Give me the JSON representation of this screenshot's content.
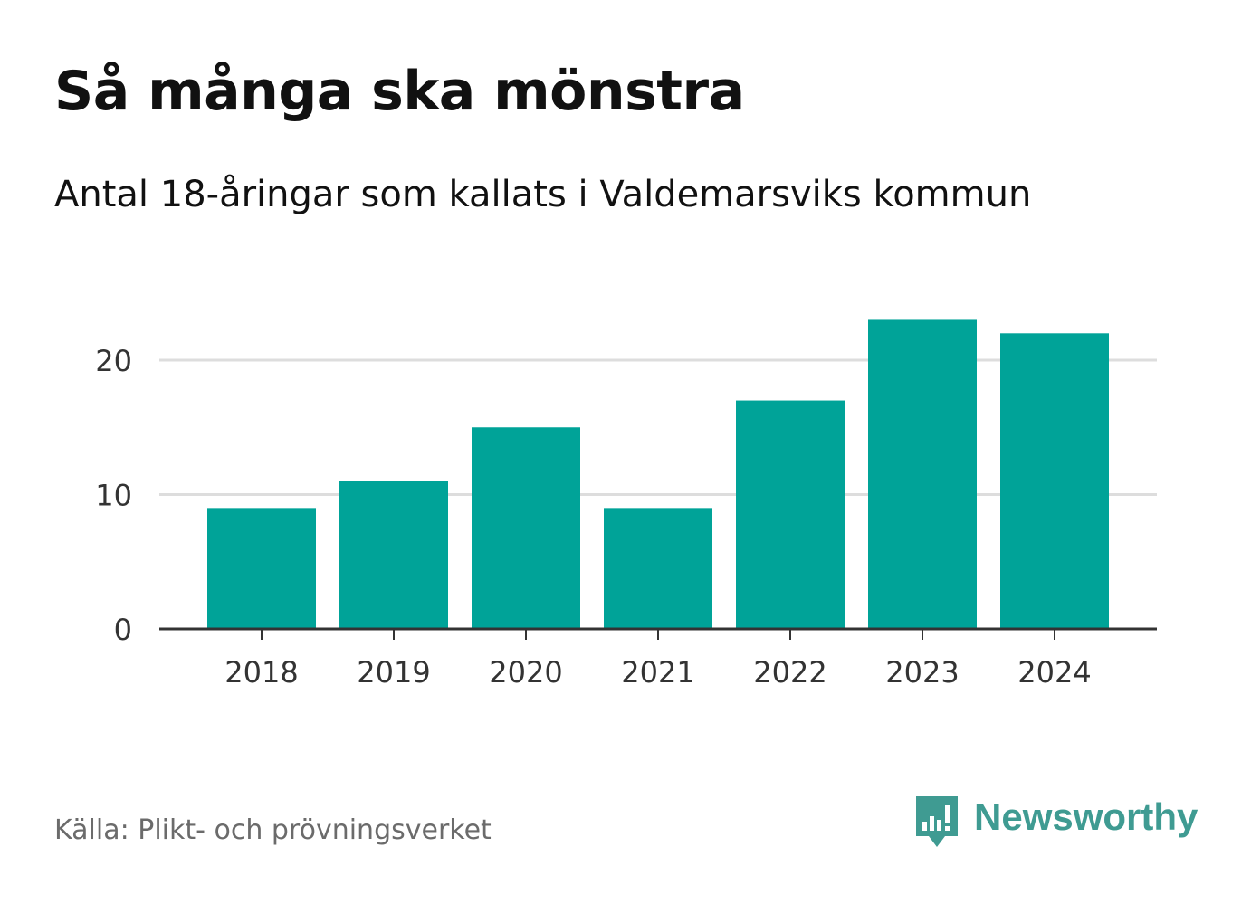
{
  "header": {
    "title": "Så många ska mönstra",
    "subtitle": "Antal 18-åringar som kallats i Valdemarsviks kommun"
  },
  "footer": {
    "source": "Källa: Plikt- och prövningsverket",
    "brand": "Newsworthy"
  },
  "colors": {
    "bar": "#00A398",
    "gridline": "#dddddd",
    "axis": "#333333",
    "tick_text": "#333333",
    "brand": "#3f9b92"
  },
  "icons": {
    "brand_logo": "newsworthy-logo-icon"
  },
  "chart_data": {
    "type": "bar",
    "title": "Så många ska mönstra",
    "subtitle": "Antal 18-åringar som kallats i Valdemarsviks kommun",
    "categories": [
      "2018",
      "2019",
      "2020",
      "2021",
      "2022",
      "2023",
      "2024"
    ],
    "values": [
      9,
      11,
      15,
      9,
      17,
      23,
      22
    ],
    "xlabel": "",
    "ylabel": "",
    "ylim": [
      0,
      23
    ],
    "yticks": [
      0,
      10,
      20
    ],
    "grid": true,
    "legend": "none"
  }
}
